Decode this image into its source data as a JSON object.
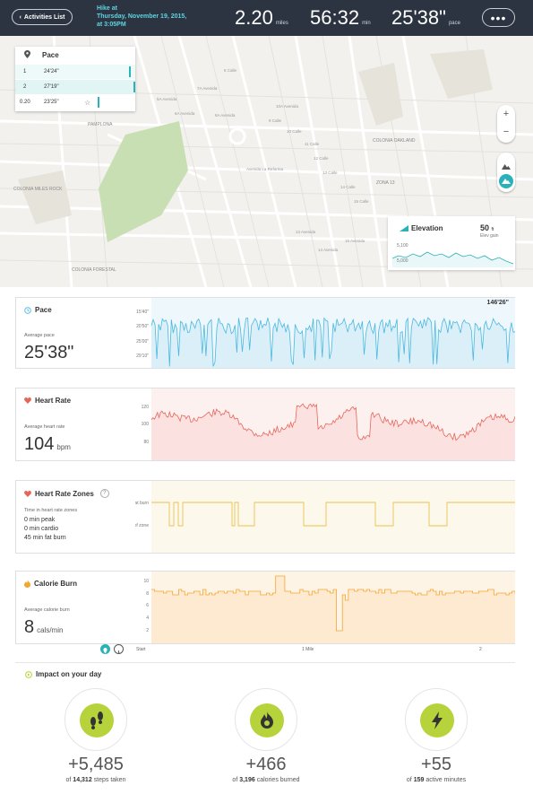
{
  "header": {
    "back_label": "Activities List",
    "title_line1": "Hike at",
    "title_line2": "Thursday, November 19, 2015,",
    "title_line3": "at 3:05PM",
    "distance": "2.20",
    "distance_unit": "miles",
    "duration": "56:32",
    "duration_unit": "min",
    "pace": "25'38\"",
    "pace_unit": "pace",
    "more_label": "•••"
  },
  "map": {
    "pace_popup": {
      "title": "Pace",
      "rows": [
        {
          "n": "1",
          "v": "24'24\"",
          "fraction": 0.95
        },
        {
          "n": "2",
          "v": "27'19\"",
          "fraction": 1.0
        },
        {
          "n": "0.20",
          "v": "23'25\"",
          "fraction": 0.6
        }
      ]
    },
    "labels": [
      "PAMPLONA",
      "COLONIA MILES ROCK",
      "COLONIA FORESTAL",
      "COLONIA OAKLAND",
      "ZONA 13",
      "9 Calle",
      "10 Calle",
      "11 Calle",
      "12 Calle",
      "13 Calle",
      "14 Calle",
      "15 Calle",
      "5A Avenida",
      "6A Avenida",
      "7A Avenida",
      "8A Avenida",
      "10A Avenida",
      "Avenida La Reforma",
      "13 Avenida",
      "14 Avenida",
      "15 Avenida",
      "6 Calle"
    ],
    "zoom_in": "+",
    "zoom_out": "−",
    "elevation": {
      "title": "Elevation",
      "value": "50",
      "unit": "ft",
      "sub": "Elev gain",
      "tick_high": "5,100",
      "tick_low": "5,000"
    }
  },
  "cards": {
    "pace": {
      "title": "Pace",
      "sub": "Average pace",
      "value": "25'38\"",
      "max_label": "146'26\"",
      "ticks": [
        "15'40\"",
        "20'50\"",
        "25'00\"",
        "29'10\""
      ]
    },
    "heart": {
      "title": "Heart Rate",
      "sub": "Average heart rate",
      "value": "104",
      "unit": "bpm",
      "ticks": [
        "120",
        "100",
        "80"
      ]
    },
    "zones": {
      "title": "Heart Rate Zones",
      "help": "?",
      "sub": "Time in heart rate zones",
      "peak": "0 min peak",
      "cardio": "0 min cardio",
      "fatburn": "45 min fat burn",
      "tick_fat": "fat burn",
      "tick_out": "out of zone"
    },
    "calorie": {
      "title": "Calorie Burn",
      "sub": "Average calorie burn",
      "value": "8",
      "unit": "cals/min",
      "ticks": [
        "10",
        "8",
        "6",
        "4",
        "2"
      ]
    }
  },
  "xaxis": {
    "start": "Start",
    "mid": "1 Mile",
    "end": "2"
  },
  "impact": {
    "title": "Impact on your day",
    "items": [
      {
        "num": "+5,485",
        "of": "of",
        "total": "14,312",
        "label": "steps taken",
        "icon": "footsteps-icon"
      },
      {
        "num": "+466",
        "of": "of",
        "total": "3,196",
        "label": "calories burned",
        "icon": "flame-icon"
      },
      {
        "num": "+55",
        "of": "of",
        "total": "159",
        "label": "active minutes",
        "icon": "bolt-icon"
      }
    ]
  },
  "colors": {
    "header": "#2b3440",
    "accent": "#5fd4e0",
    "pace": "#4bb8e0",
    "heart": "#e8655a",
    "zones": "#e9c24c",
    "calorie": "#f3a530",
    "impact": "#b7d33b"
  }
}
